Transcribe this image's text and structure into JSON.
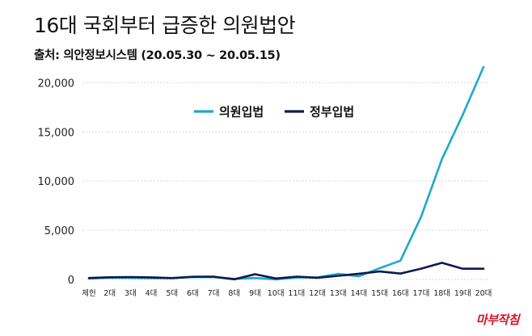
{
  "chart_data": {
    "type": "line",
    "title": "16대 국회부터 급증한 의원법안",
    "source": "출처: 의안정보시스템 (20.05.30 ~ 20.05.15)",
    "categories": [
      "제헌",
      "2대",
      "3대",
      "4대",
      "5대",
      "6대",
      "7대",
      "8대",
      "9대",
      "10대",
      "11대",
      "12대",
      "13대",
      "14대",
      "15대",
      "16대",
      "17대",
      "18대",
      "19대",
      "20대"
    ],
    "y_ticks": [
      "0",
      "5,000",
      "10,000",
      "15,000",
      "20,000"
    ],
    "y_tick_values": [
      0,
      5000,
      10000,
      15000,
      20000
    ],
    "ylim": [
      0,
      22000
    ],
    "series": [
      {
        "name": "의원입법",
        "color": "#1ea9c9",
        "values": [
          90,
          180,
          160,
          120,
          140,
          250,
          240,
          60,
          150,
          5,
          200,
          210,
          570,
          320,
          1140,
          1910,
          6390,
          12220,
          16730,
          21590
        ]
      },
      {
        "name": "정부입법",
        "color": "#0c1a4d",
        "values": [
          150,
          220,
          250,
          210,
          140,
          270,
          290,
          20,
          530,
          100,
          290,
          170,
          370,
          580,
          810,
          600,
          1100,
          1690,
          1090,
          1090
        ]
      }
    ],
    "legend": [
      "의원입법",
      "정부입법"
    ],
    "legend_position": "top-center"
  },
  "watermark": "마부작침"
}
